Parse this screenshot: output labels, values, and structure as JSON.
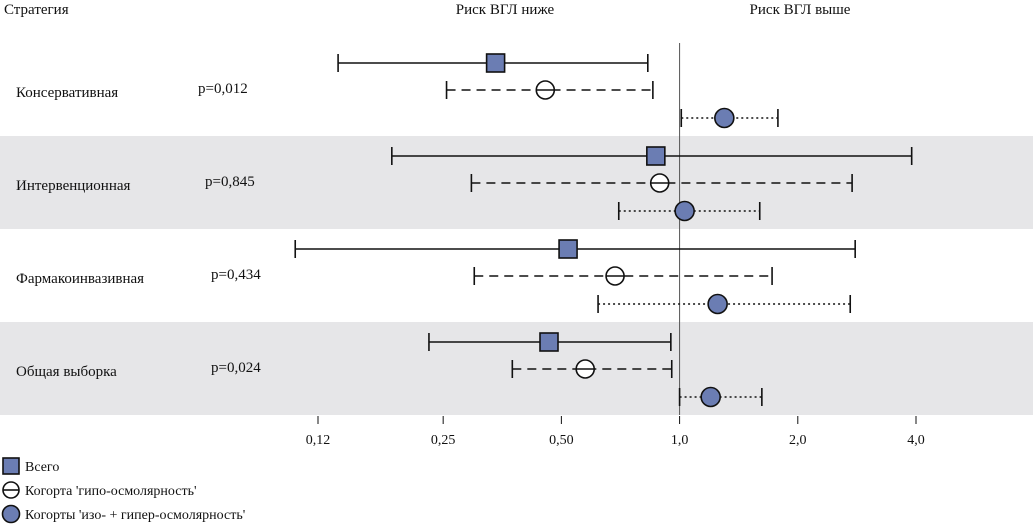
{
  "chart_data": {
    "type": "forest",
    "header": {
      "strategy": "Стратегия",
      "lower": "Риск ВГЛ ниже",
      "higher": "Риск ВГЛ выше"
    },
    "x_scale": "log",
    "xlim": [
      0.12,
      4.0
    ],
    "reference_line": 1.0,
    "ticks": [
      {
        "value": 0.12,
        "label": "0,12"
      },
      {
        "value": 0.25,
        "label": "0,25"
      },
      {
        "value": 0.5,
        "label": "0,50"
      },
      {
        "value": 1.0,
        "label": "1,0"
      },
      {
        "value": 2.0,
        "label": "2,0"
      },
      {
        "value": 4.0,
        "label": "4,0"
      }
    ],
    "series": [
      {
        "key": "all",
        "name": "Всего",
        "marker": "square",
        "line": "solid",
        "color": "#6b7db3"
      },
      {
        "key": "hypo",
        "name": "Когорта 'гипо-осмолярность'",
        "marker": "circle-minus",
        "line": "dashed",
        "color": "#ffffff"
      },
      {
        "key": "iso",
        "name": "Когорты 'изо- + гипер-осмолярность'",
        "marker": "circle",
        "line": "dotted",
        "color": "#6b7db3"
      }
    ],
    "groups": [
      {
        "label": "Консервативная",
        "p": "p=0,012",
        "shaded": false,
        "rows": [
          {
            "series": "all",
            "est": 0.34,
            "lo": 0.135,
            "hi": 0.83
          },
          {
            "series": "hypo",
            "est": 0.455,
            "lo": 0.255,
            "hi": 0.855
          },
          {
            "series": "iso",
            "est": 1.3,
            "lo": 1.01,
            "hi": 1.78
          }
        ]
      },
      {
        "label": "Интервенционная",
        "p": "p=0,845",
        "shaded": true,
        "rows": [
          {
            "series": "all",
            "est": 0.87,
            "lo": 0.185,
            "hi": 3.9
          },
          {
            "series": "hypo",
            "est": 0.89,
            "lo": 0.295,
            "hi": 2.75
          },
          {
            "series": "iso",
            "est": 1.03,
            "lo": 0.7,
            "hi": 1.6
          }
        ]
      },
      {
        "label": "Фармакоинвазивная",
        "p": "p=0,434",
        "shaded": false,
        "rows": [
          {
            "series": "all",
            "est": 0.52,
            "lo": 0.105,
            "hi": 2.8
          },
          {
            "series": "hypo",
            "est": 0.685,
            "lo": 0.3,
            "hi": 1.72
          },
          {
            "series": "iso",
            "est": 1.25,
            "lo": 0.62,
            "hi": 2.72
          }
        ]
      },
      {
        "label": "Общая выборка",
        "p": "p=0,024",
        "shaded": true,
        "rows": [
          {
            "series": "all",
            "est": 0.465,
            "lo": 0.23,
            "hi": 0.95
          },
          {
            "series": "hypo",
            "est": 0.575,
            "lo": 0.375,
            "hi": 0.955
          },
          {
            "series": "iso",
            "est": 1.2,
            "lo": 1.0,
            "hi": 1.62
          }
        ]
      }
    ]
  }
}
